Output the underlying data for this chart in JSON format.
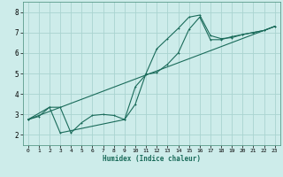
{
  "xlabel": "Humidex (Indice chaleur)",
  "bg_color": "#cdecea",
  "grid_color": "#aad4d0",
  "line_color": "#1a6b5a",
  "xlim": [
    -0.5,
    23.5
  ],
  "ylim": [
    1.5,
    8.5
  ],
  "xticks": [
    0,
    1,
    2,
    3,
    4,
    5,
    6,
    7,
    8,
    9,
    10,
    11,
    12,
    13,
    14,
    15,
    16,
    17,
    18,
    19,
    20,
    21,
    22,
    23
  ],
  "yticks": [
    2,
    3,
    4,
    5,
    6,
    7,
    8
  ],
  "series1_x": [
    0,
    1,
    2,
    3,
    4,
    5,
    6,
    7,
    8,
    9,
    10,
    11,
    12,
    13,
    14,
    15,
    16,
    17,
    18,
    19,
    20,
    21,
    22,
    23
  ],
  "series1_y": [
    2.75,
    2.9,
    3.35,
    3.35,
    2.1,
    2.6,
    2.95,
    3.0,
    2.95,
    2.75,
    3.5,
    5.0,
    6.2,
    6.7,
    7.2,
    7.75,
    7.85,
    6.85,
    6.7,
    6.75,
    6.9,
    7.0,
    7.1,
    7.3
  ],
  "series2_x": [
    0,
    2,
    3,
    9,
    10,
    11,
    12,
    13,
    14,
    15,
    16,
    17,
    18,
    19,
    20,
    21,
    22,
    23
  ],
  "series2_y": [
    2.75,
    3.35,
    2.1,
    2.75,
    4.35,
    4.95,
    5.05,
    5.45,
    6.0,
    7.15,
    7.75,
    6.65,
    6.65,
    6.8,
    6.9,
    7.0,
    7.1,
    7.3
  ],
  "series3_x": [
    0,
    23
  ],
  "series3_y": [
    2.75,
    7.3
  ],
  "figsize": [
    3.2,
    2.0
  ],
  "dpi": 100
}
